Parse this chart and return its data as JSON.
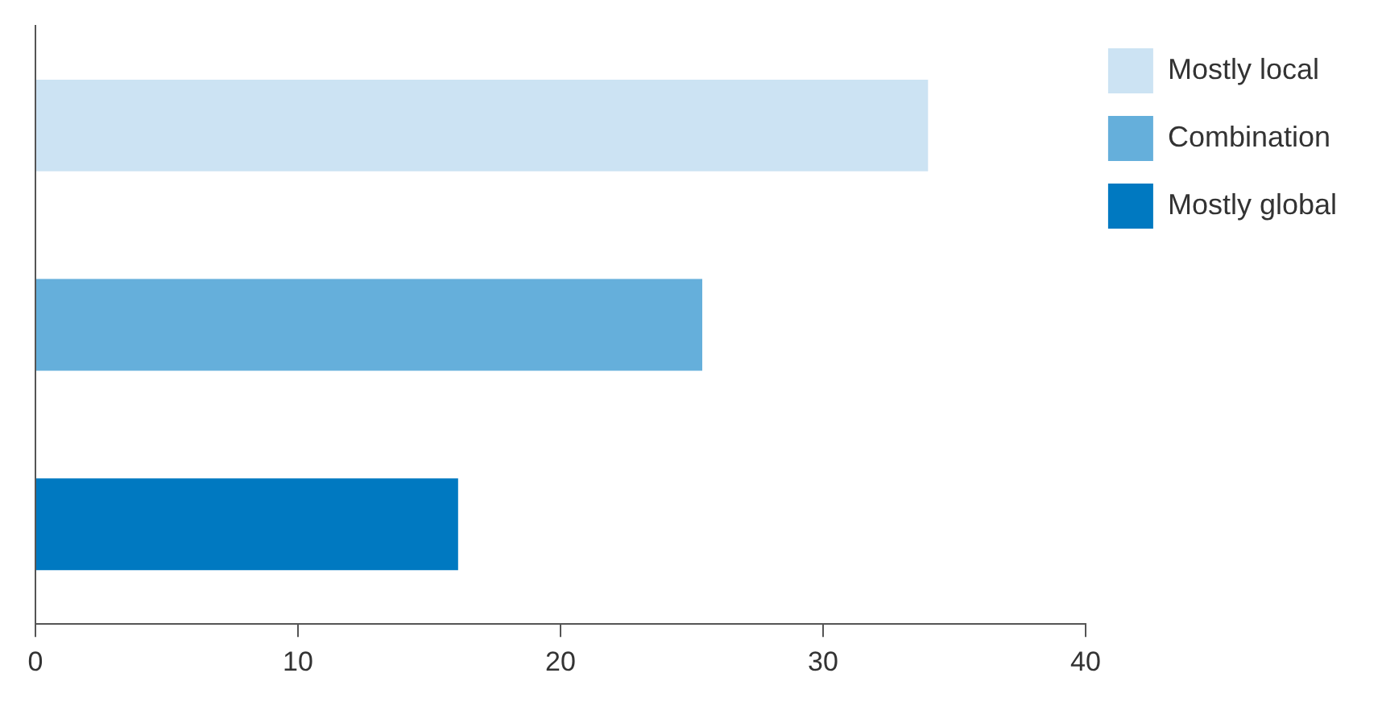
{
  "chart_data": {
    "type": "bar",
    "orientation": "horizontal",
    "categories": [
      null,
      null,
      null
    ],
    "series": [
      {
        "name": "Mostly local",
        "color": "#cce3f3",
        "values": [
          34,
          null,
          null
        ]
      },
      {
        "name": "Combination",
        "color": "#65afdb",
        "values": [
          null,
          25.4,
          null
        ]
      },
      {
        "name": "Mostly global",
        "color": "#0079c1",
        "values": [
          null,
          null,
          16.1
        ]
      }
    ],
    "xlim": [
      0,
      40
    ],
    "xticks": [
      0,
      10,
      20,
      30,
      40
    ],
    "tick_labels": "x",
    "grid": false,
    "legend": "top right"
  }
}
